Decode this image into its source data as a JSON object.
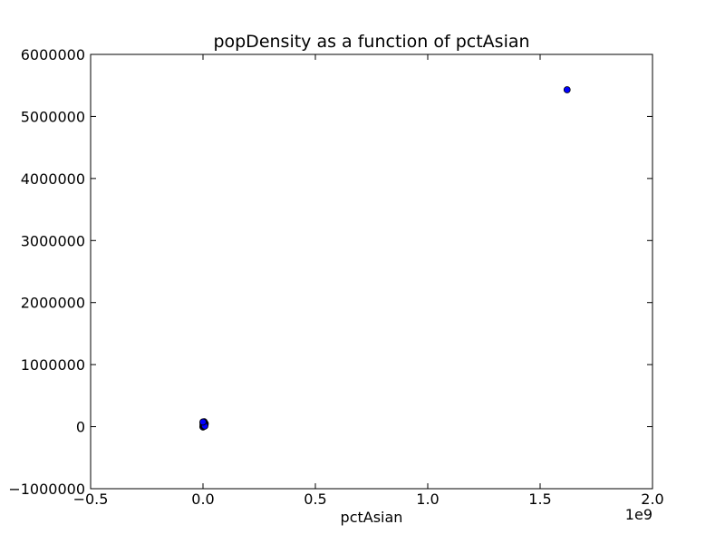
{
  "chart_data": {
    "type": "scatter",
    "title": "popDensity as a function of pctAsian",
    "xlabel": "pctAsian",
    "ylabel": "",
    "x_offset_label": "1e9",
    "xlim": [
      -0.5,
      2.0
    ],
    "ylim": [
      -1000000,
      6000000
    ],
    "x_ticks": [
      {
        "value": -0.5,
        "label": "−0.5"
      },
      {
        "value": 0.0,
        "label": "0.0"
      },
      {
        "value": 0.5,
        "label": "0.5"
      },
      {
        "value": 1.0,
        "label": "1.0"
      },
      {
        "value": 1.5,
        "label": "1.5"
      },
      {
        "value": 2.0,
        "label": "2.0"
      }
    ],
    "y_ticks": [
      {
        "value": -1000000,
        "label": "−1000000"
      },
      {
        "value": 0,
        "label": "0"
      },
      {
        "value": 1000000,
        "label": "1000000"
      },
      {
        "value": 2000000,
        "label": "2000000"
      },
      {
        "value": 3000000,
        "label": "3000000"
      },
      {
        "value": 4000000,
        "label": "4000000"
      },
      {
        "value": 5000000,
        "label": "5000000"
      },
      {
        "value": 6000000,
        "label": "6000000"
      }
    ],
    "grid": false,
    "marker_color": "#0000ff",
    "marker_edge": "#000000",
    "series": [
      {
        "x": [
          1.62,
          0.0,
          0.002,
          0.004,
          0.006,
          0.008,
          0.01,
          0.0,
          0.003,
          0.005,
          0.007,
          0.009,
          0.0,
          0.002,
          0.004,
          0.006,
          0.0,
          0.003,
          0.005,
          0.001,
          0.004,
          0.008,
          0.0
        ],
        "y": [
          5430000,
          0,
          10000,
          20000,
          30000,
          40000,
          50000,
          60000,
          70000,
          80000,
          50000,
          30000,
          -5000,
          45000,
          65000,
          20000,
          25000,
          5000,
          55000,
          35000,
          15000,
          10000,
          75000
        ]
      }
    ]
  }
}
